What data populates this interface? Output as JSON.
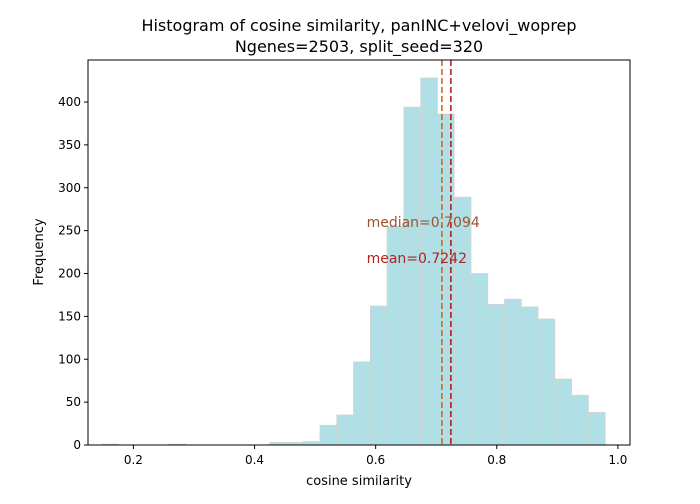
{
  "chart_data": {
    "type": "bar",
    "title": "Histogram of cosine similarity, panINC+velovi_woprep",
    "subtitle": "Ngenes=2503, split_seed=320",
    "xlabel": "cosine similarity",
    "ylabel": "Frequency",
    "xlim": [
      0.125,
      1.02
    ],
    "ylim": [
      0,
      449
    ],
    "xticks": [
      0.2,
      0.4,
      0.6,
      0.8,
      1.0
    ],
    "xtick_labels": [
      "0.2",
      "0.4",
      "0.6",
      "0.8",
      "1.0"
    ],
    "yticks": [
      0,
      50,
      100,
      150,
      200,
      250,
      300,
      350,
      400
    ],
    "ytick_labels": [
      "0",
      "50",
      "100",
      "150",
      "200",
      "250",
      "300",
      "350",
      "400"
    ],
    "bin_width": 0.0277,
    "bins": [
      {
        "x0": 0.148,
        "x1": 0.1757,
        "count": 1
      },
      {
        "x0": 0.1757,
        "x1": 0.2034,
        "count": 0
      },
      {
        "x0": 0.2034,
        "x1": 0.2311,
        "count": 0
      },
      {
        "x0": 0.2311,
        "x1": 0.2588,
        "count": 0
      },
      {
        "x0": 0.2588,
        "x1": 0.2865,
        "count": 1
      },
      {
        "x0": 0.2865,
        "x1": 0.3142,
        "count": 0
      },
      {
        "x0": 0.3142,
        "x1": 0.3419,
        "count": 0
      },
      {
        "x0": 0.3419,
        "x1": 0.3696,
        "count": 0
      },
      {
        "x0": 0.3696,
        "x1": 0.3973,
        "count": 0
      },
      {
        "x0": 0.3973,
        "x1": 0.425,
        "count": 0
      },
      {
        "x0": 0.425,
        "x1": 0.4527,
        "count": 3
      },
      {
        "x0": 0.4527,
        "x1": 0.4804,
        "count": 3
      },
      {
        "x0": 0.4804,
        "x1": 0.5081,
        "count": 4
      },
      {
        "x0": 0.5081,
        "x1": 0.5358,
        "count": 23
      },
      {
        "x0": 0.5358,
        "x1": 0.5635,
        "count": 35
      },
      {
        "x0": 0.5635,
        "x1": 0.5912,
        "count": 97
      },
      {
        "x0": 0.5912,
        "x1": 0.6189,
        "count": 162
      },
      {
        "x0": 0.6189,
        "x1": 0.6466,
        "count": 255
      },
      {
        "x0": 0.6466,
        "x1": 0.6743,
        "count": 394
      },
      {
        "x0": 0.6743,
        "x1": 0.702,
        "count": 428
      },
      {
        "x0": 0.702,
        "x1": 0.7297,
        "count": 386
      },
      {
        "x0": 0.7297,
        "x1": 0.7574,
        "count": 289
      },
      {
        "x0": 0.7574,
        "x1": 0.7851,
        "count": 200
      },
      {
        "x0": 0.7851,
        "x1": 0.8128,
        "count": 164
      },
      {
        "x0": 0.8128,
        "x1": 0.8405,
        "count": 170
      },
      {
        "x0": 0.8405,
        "x1": 0.8682,
        "count": 161
      },
      {
        "x0": 0.8682,
        "x1": 0.8959,
        "count": 147
      },
      {
        "x0": 0.8959,
        "x1": 0.9236,
        "count": 77
      },
      {
        "x0": 0.9236,
        "x1": 0.9513,
        "count": 58
      },
      {
        "x0": 0.9513,
        "x1": 0.979,
        "count": 38
      }
    ],
    "reference_lines": [
      {
        "name": "median",
        "value": 0.7094,
        "color": "#d2691e",
        "label": "median=0.7094",
        "label_y": 260,
        "label_color": "#a0522d"
      },
      {
        "name": "mean",
        "value": 0.7242,
        "color": "#b22222",
        "label": "mean=0.7242",
        "label_y": 218,
        "label_color": "#b22222"
      }
    ],
    "bar_color": "#b0dfe5",
    "bar_edge_color": "#d3d3d3",
    "grid": false
  }
}
